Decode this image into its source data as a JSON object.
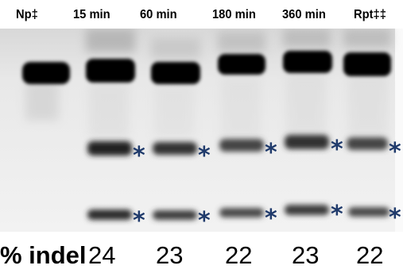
{
  "lanes": [
    {
      "label": "Np‡",
      "indel": ""
    },
    {
      "label": "15 min",
      "indel": "24"
    },
    {
      "label": "60 min",
      "indel": "23"
    },
    {
      "label": "180 min",
      "indel": "22"
    },
    {
      "label": "360 min",
      "indel": "23"
    },
    {
      "label": "Rpt‡‡",
      "indel": "22"
    }
  ],
  "indel_label": "% indel",
  "marker_symbol": "*",
  "colors": {
    "gel_background": "#ececec",
    "band": "#050505",
    "marker": "#1f3a6b"
  }
}
